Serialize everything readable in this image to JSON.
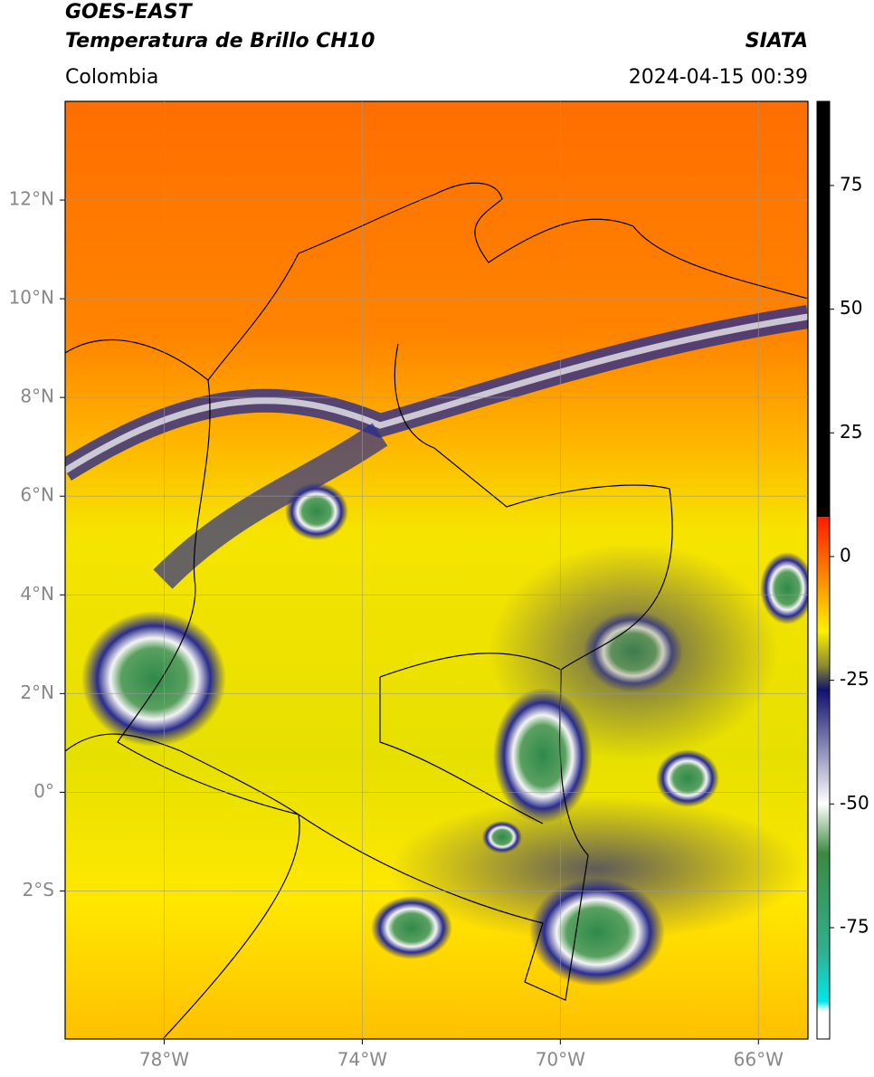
{
  "header": {
    "title": "GOES-EAST",
    "subtitle": "Temperatura de Brillo CH10",
    "region": "Colombia",
    "source": "SIATA",
    "datetime": "2024-04-15 00:39"
  },
  "map": {
    "lonlim": [
      -80,
      -65
    ],
    "latlim": [
      -5,
      14
    ],
    "lonticks": [
      {
        "value": -78,
        "label": "78°W"
      },
      {
        "value": -74,
        "label": "74°W"
      },
      {
        "value": -70,
        "label": "70°W"
      },
      {
        "value": -66,
        "label": "66°W"
      }
    ],
    "latticks": [
      {
        "value": 12,
        "label": "12°N"
      },
      {
        "value": 10,
        "label": "10°N"
      },
      {
        "value": 8,
        "label": "8°N"
      },
      {
        "value": 6,
        "label": "6°N"
      },
      {
        "value": 4,
        "label": "4°N"
      },
      {
        "value": 2,
        "label": "2°N"
      },
      {
        "value": 0,
        "label": "0°"
      },
      {
        "value": -2,
        "label": "2°S"
      }
    ]
  },
  "colorbar": {
    "lim": [
      -97.5,
      92
    ],
    "ticks": [
      75,
      50,
      25,
      0,
      -25,
      -50,
      -75
    ]
  }
}
